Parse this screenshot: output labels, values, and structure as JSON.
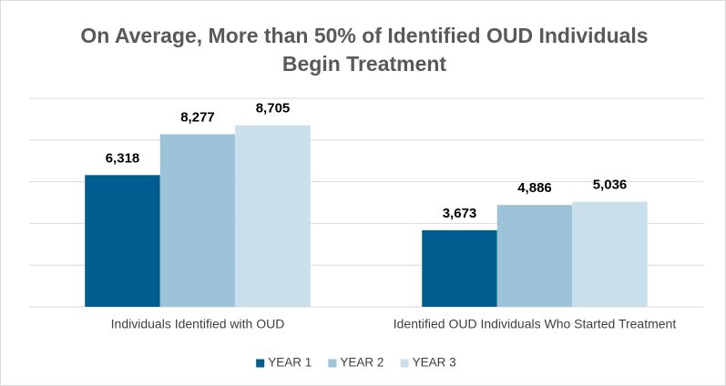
{
  "chart_data": {
    "type": "bar",
    "title": [
      "On Average, More than 50% of Identified OUD Individuals",
      "Begin Treatment"
    ],
    "categories": [
      "Individuals Identified with OUD",
      "Identified OUD Individuals Who Started Treatment"
    ],
    "series": [
      {
        "name": "YEAR 1",
        "color": "#005d8f",
        "values": [
          6318,
          3673
        ],
        "value_labels": [
          "6,318",
          "3,673"
        ]
      },
      {
        "name": "YEAR 2",
        "color": "#9dc3d8",
        "values": [
          8277,
          4886
        ],
        "value_labels": [
          "8,277",
          "4,886"
        ]
      },
      {
        "name": "YEAR 3",
        "color": "#c9dfeb",
        "values": [
          8705,
          5036
        ],
        "value_labels": [
          "8,705",
          "5,036"
        ]
      }
    ],
    "ylim": [
      0,
      10000
    ],
    "yticks": [
      0,
      2000,
      4000,
      6000,
      8000,
      10000
    ],
    "grid": true,
    "legend": "bottom"
  }
}
